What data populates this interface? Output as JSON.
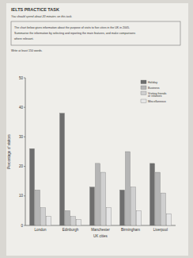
{
  "header": {
    "title": "IELTS PRACTICE TASK",
    "instruction": "You should spend about 20 minutes on this task.",
    "task": [
      "The chart below gives information about the purpose of visits to five cities in the UK in 2005.",
      "Summarise the information by selecting and reporting the main features, and make comparisons",
      "where relevant."
    ],
    "words": "Write at least 150 words."
  },
  "chart_data": {
    "type": "bar",
    "x_label": "UK cities",
    "y_label": "Percentage of visitors",
    "categories": [
      "London",
      "Edinburgh",
      "Manchester",
      "Birmingham",
      "Liverpool"
    ],
    "series": [
      {
        "name": "Holiday",
        "color": "#6e6e6e",
        "values": [
          26,
          38,
          13,
          12,
          21
        ]
      },
      {
        "name": "Business",
        "color": "#b5b5b5",
        "values": [
          12,
          5,
          21,
          25,
          18
        ]
      },
      {
        "name": "Visiting friends or relatives",
        "color": "#cfcfcf",
        "values": [
          6,
          3,
          18,
          13,
          11
        ]
      },
      {
        "name": "Miscellaneous",
        "color": "#e6e6e6",
        "values": [
          3,
          2,
          6,
          5,
          4
        ]
      }
    ],
    "ylim": [
      0,
      50
    ],
    "yticks": [
      0,
      10,
      20,
      30,
      40,
      50
    ],
    "grid": false,
    "legend": "top-right"
  }
}
